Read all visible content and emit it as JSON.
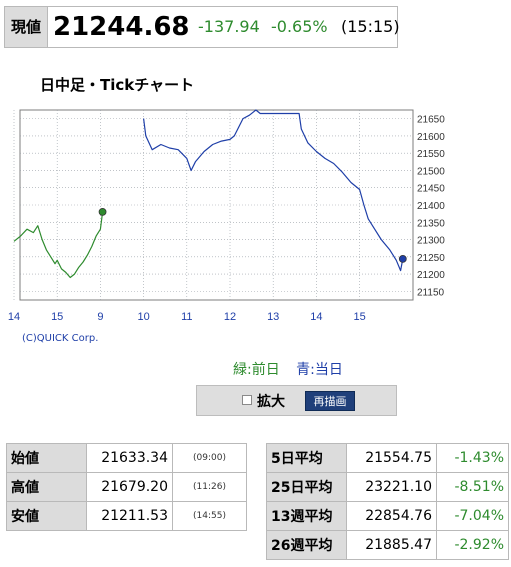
{
  "price": {
    "label": "現値",
    "value": "21244.68",
    "change": "-137.94",
    "change_pct": "-0.65%",
    "time": "(15:15)"
  },
  "chart": {
    "title": "日中足・Tickチャート",
    "credit": "(C)QUICK Corp.",
    "legend_prev": "緑:前日",
    "legend_cur": "青:当日",
    "colors": {
      "prev": "#2e8b2e",
      "cur": "#1f3fa8",
      "grid": "#9aa0a8"
    }
  },
  "controls": {
    "zoom_label": "拡大",
    "redraw_label": "再描画"
  },
  "chart_data": {
    "type": "line",
    "x_ticks": [
      "14",
      "15",
      "9",
      "10",
      "11",
      "12",
      "13",
      "14",
      "15"
    ],
    "y_ticks": [
      21650,
      21600,
      21550,
      21500,
      21450,
      21400,
      21350,
      21300,
      21250,
      21200,
      21150
    ],
    "ylim": [
      21125,
      21675
    ],
    "grid": true,
    "series": [
      {
        "name": "前日",
        "color": "#2e8b2e",
        "points": [
          [
            0.0,
            21295
          ],
          [
            0.15,
            21310
          ],
          [
            0.3,
            21330
          ],
          [
            0.45,
            21320
          ],
          [
            0.55,
            21340
          ],
          [
            0.65,
            21300
          ],
          [
            0.75,
            21270
          ],
          [
            0.85,
            21250
          ],
          [
            0.95,
            21230
          ],
          [
            1.0,
            21240
          ],
          [
            1.1,
            21215
          ],
          [
            1.2,
            21205
          ],
          [
            1.3,
            21190
          ],
          [
            1.4,
            21200
          ],
          [
            1.5,
            21220
          ],
          [
            1.6,
            21235
          ],
          [
            1.7,
            21255
          ],
          [
            1.8,
            21280
          ],
          [
            1.9,
            21310
          ],
          [
            2.0,
            21330
          ],
          [
            2.05,
            21380
          ]
        ]
      },
      {
        "name": "当日",
        "color": "#1f3fa8",
        "points": [
          [
            3.0,
            21650
          ],
          [
            3.05,
            21600
          ],
          [
            3.2,
            21560
          ],
          [
            3.4,
            21575
          ],
          [
            3.6,
            21565
          ],
          [
            3.8,
            21560
          ],
          [
            4.0,
            21535
          ],
          [
            4.1,
            21500
          ],
          [
            4.2,
            21525
          ],
          [
            4.4,
            21555
          ],
          [
            4.6,
            21575
          ],
          [
            4.8,
            21585
          ],
          [
            5.0,
            21590
          ],
          [
            5.1,
            21600
          ],
          [
            5.3,
            21650
          ],
          [
            5.45,
            21660
          ],
          [
            5.6,
            21675
          ],
          [
            5.7,
            21665
          ],
          [
            6.0,
            21665
          ],
          [
            6.3,
            21665
          ],
          [
            6.6,
            21665
          ],
          [
            6.65,
            21620
          ],
          [
            6.8,
            21580
          ],
          [
            7.0,
            21555
          ],
          [
            7.2,
            21535
          ],
          [
            7.4,
            21520
          ],
          [
            7.6,
            21495
          ],
          [
            7.8,
            21465
          ],
          [
            8.0,
            21445
          ],
          [
            8.1,
            21400
          ],
          [
            8.2,
            21360
          ],
          [
            8.35,
            21330
          ],
          [
            8.5,
            21300
          ],
          [
            8.7,
            21270
          ],
          [
            8.85,
            21240
          ],
          [
            8.95,
            21210
          ],
          [
            9.0,
            21244
          ]
        ]
      }
    ],
    "end_markers": [
      {
        "series": "前日",
        "x": 2.05,
        "y": 21380
      },
      {
        "series": "当日",
        "x": 9.0,
        "y": 21244
      }
    ]
  },
  "stats_left": [
    {
      "label": "始値",
      "value": "21633.34",
      "time": "(09:00)"
    },
    {
      "label": "高値",
      "value": "21679.20",
      "time": "(11:26)"
    },
    {
      "label": "安値",
      "value": "21211.53",
      "time": "(14:55)"
    }
  ],
  "stats_right": [
    {
      "label": "5日平均",
      "value": "21554.75",
      "pct": "-1.43%"
    },
    {
      "label": "25日平均",
      "value": "23221.10",
      "pct": "-8.51%"
    },
    {
      "label": "13週平均",
      "value": "22854.76",
      "pct": "-7.04%"
    },
    {
      "label": "26週平均",
      "value": "21885.47",
      "pct": "-2.92%"
    }
  ]
}
